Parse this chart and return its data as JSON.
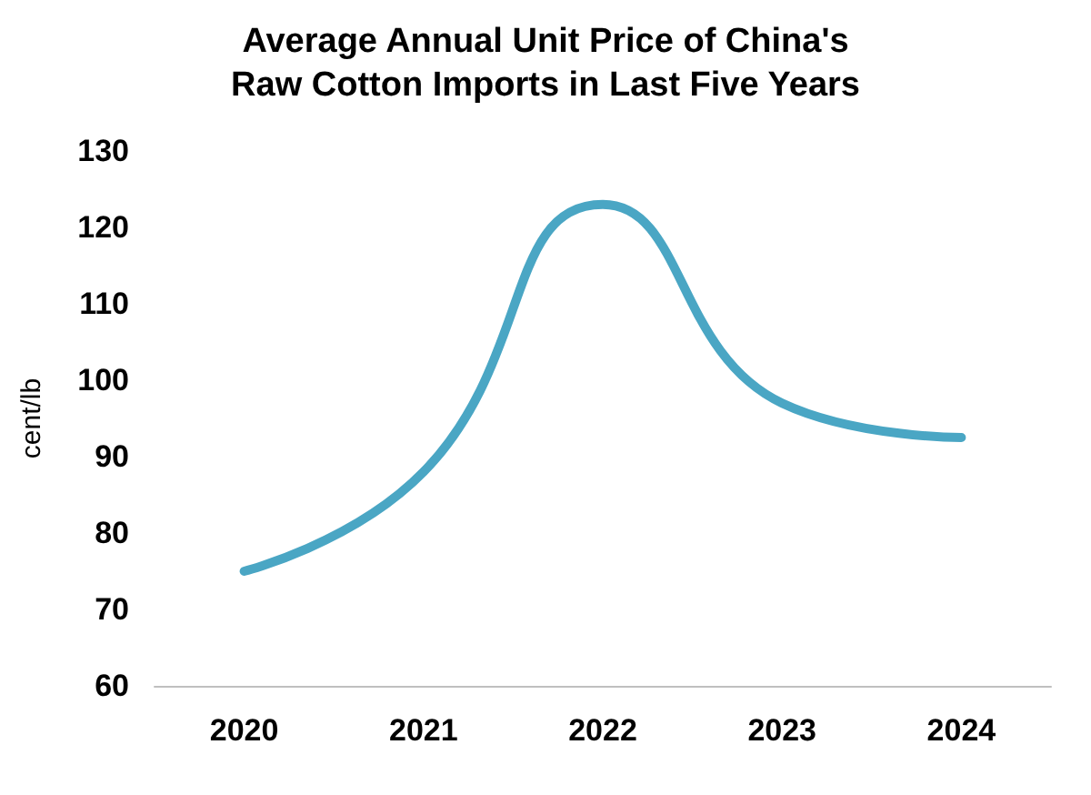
{
  "chart_data": {
    "type": "line",
    "title": "Average Annual Unit Price of China's\nRaw Cotton Imports in Last Five Years",
    "ylabel": "cent/lb",
    "categories": [
      "2020",
      "2021",
      "2022",
      "2023",
      "2024"
    ],
    "series": [
      {
        "color": "#4aa6c4",
        "values": [
          75,
          88,
          123,
          97,
          92.5
        ]
      }
    ],
    "ylim": [
      60,
      130
    ],
    "yticks": [
      60,
      70,
      80,
      90,
      100,
      110,
      120,
      130
    ],
    "marker": "none",
    "line_style": "solid"
  }
}
